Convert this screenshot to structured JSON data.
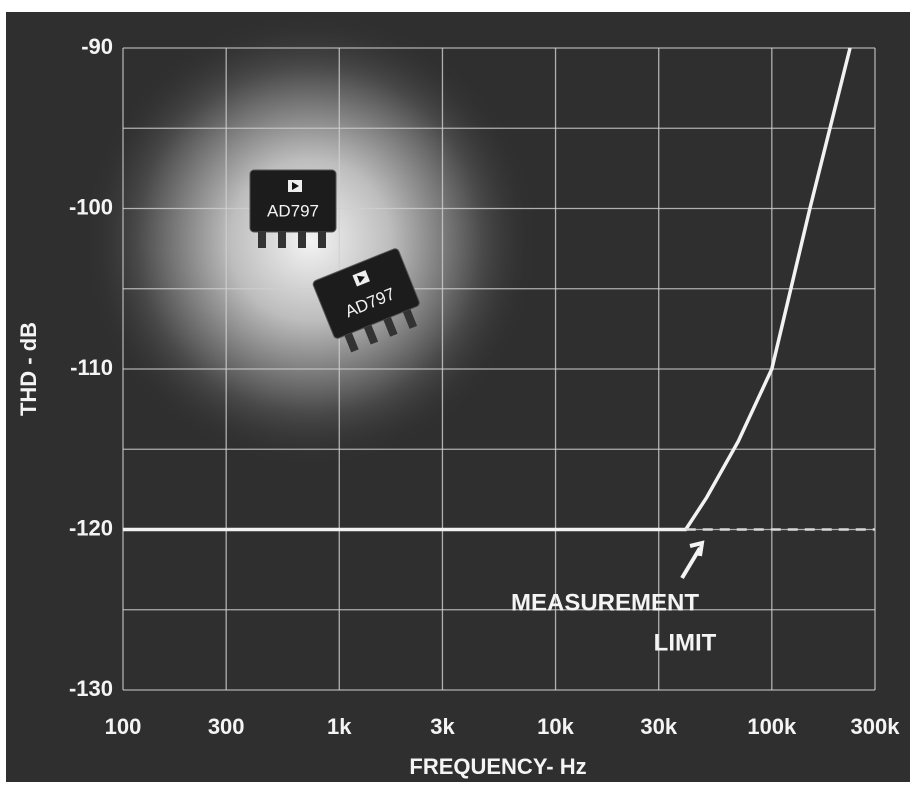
{
  "chart_data": {
    "type": "line",
    "xlabel": "FREQUENCY- Hz",
    "ylabel": "THD - dB",
    "log_x": true,
    "grid": true,
    "xlim": [
      100,
      300000
    ],
    "ylim": [
      -130,
      -90
    ],
    "xticks": [
      100,
      300,
      {
        "value": 1000,
        "label": "1k"
      },
      {
        "value": 3000,
        "label": "3k"
      },
      {
        "value": 10000,
        "label": "10k"
      },
      {
        "value": 30000,
        "label": "30k"
      },
      {
        "value": 100000,
        "label": "100k"
      },
      {
        "value": 300000,
        "label": "300k"
      }
    ],
    "yticks": [
      -130,
      -120,
      -110,
      -100,
      -90
    ],
    "series": [
      {
        "color": "#f2f2f2",
        "style": "solid",
        "x": [
          100,
          1000,
          10000,
          40000,
          50000,
          70000,
          100000,
          150000,
          230000
        ],
        "values": [
          -120,
          -120,
          -120,
          -120,
          -118,
          -114.5,
          -110,
          -100,
          -90
        ]
      },
      {
        "color": "#d8d8d8",
        "style": "dashed",
        "x": [
          40000,
          300000
        ],
        "values": [
          -120,
          -120
        ]
      }
    ],
    "annotation": [
      "MEASUREMENT",
      "LIMIT"
    ],
    "image_labels": [
      "AD797",
      "AD797"
    ]
  }
}
